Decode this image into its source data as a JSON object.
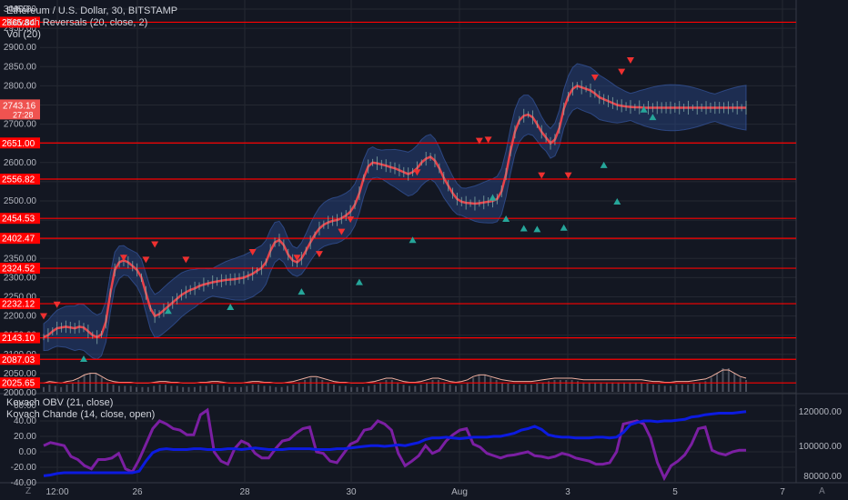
{
  "legend": {
    "symbol": "Ethereum / U.S. Dollar, 30, BITSTAMP",
    "study1": "Kovach Reversals (20, close, 2)",
    "study2": "Vol (20)",
    "osc1": "Kovach OBV (21, close)",
    "osc2": "Kovach Chande (14, close, open)"
  },
  "currency": "USD",
  "corner_buttons": {
    "left": "Z",
    "right": "A"
  },
  "colors": {
    "background": "#131722",
    "grid": "#242832",
    "price_line": "#ff0000",
    "current_label": "#ef5350",
    "mid_band": "#e8424a",
    "band_fill": "#2a4a8c",
    "obv": "#0c1be0",
    "chande": "#7b1fa2",
    "volume_line": "#f0b0a0",
    "marker_up": "#26a69a",
    "marker_down": "#ef3030"
  },
  "chart_data": [
    {
      "type": "line",
      "title": "Ethereum / U.S. Dollar, 30, BITSTAMP",
      "ylim": [
        2000,
        3000
      ],
      "y_ticks": [
        "3000.00",
        "2950.00",
        "2900.00",
        "2850.00",
        "2800.00",
        "2750.00",
        "2700.00",
        "2650.00",
        "2600.00",
        "2550.00",
        "2500.00",
        "2450.00",
        "2400.00",
        "2350.00",
        "2300.00",
        "2250.00",
        "2200.00",
        "2150.00",
        "2100.00",
        "2050.00",
        "2000.00"
      ],
      "x_ticks": [
        "12:00",
        "26",
        "28",
        "30",
        "Aug",
        "3",
        "5",
        "7"
      ],
      "horizontal_levels": [
        2965.84,
        2651.0,
        2556.82,
        2454.53,
        2402.47,
        2324.52,
        2232.12,
        2143.1,
        2087.03,
        2025.65
      ],
      "current_price": {
        "value": "2743.16",
        "countdown": "27:28"
      },
      "series": [
        {
          "name": "Kovach Reversals (20, close, 2)",
          "x": [
            0,
            1,
            2,
            3,
            4,
            5,
            6,
            7,
            8,
            9,
            10,
            11,
            12,
            13,
            14,
            15,
            16,
            17,
            18,
            19,
            20,
            21,
            22,
            23,
            24,
            25,
            26,
            27,
            28,
            29,
            30,
            31,
            32,
            33,
            34,
            35,
            36,
            37,
            38,
            39,
            40,
            41,
            42,
            43,
            44,
            45,
            46,
            47,
            48,
            49,
            50,
            51,
            52,
            53,
            54,
            55,
            56,
            57,
            58,
            59,
            60,
            61,
            62,
            63,
            64,
            65,
            66,
            67,
            68,
            69,
            70,
            71,
            72,
            73,
            74,
            75,
            76,
            77,
            78,
            79,
            80,
            81,
            82,
            83,
            84,
            85,
            86,
            87,
            88,
            89,
            90,
            91,
            92,
            93,
            94,
            95,
            96,
            97,
            98,
            99,
            100,
            101,
            102,
            103,
            104,
            105,
            106,
            107,
            108,
            109,
            110,
            111,
            112,
            113,
            114,
            115,
            116,
            117,
            118,
            119,
            120,
            121,
            122,
            123,
            124,
            125,
            126,
            127,
            128,
            129,
            130,
            131,
            132,
            133,
            134,
            135,
            136,
            137,
            138,
            139,
            140,
            141,
            142,
            143,
            144,
            145,
            146,
            147,
            148,
            149,
            150,
            151,
            152,
            153,
            154,
            155,
            156,
            157,
            158
          ],
          "values": [
            2145,
            2150,
            2160,
            2168,
            2170,
            2172,
            2170,
            2168,
            2172,
            2170,
            2160,
            2150,
            2145,
            2152,
            2185,
            2260,
            2320,
            2340,
            2345,
            2340,
            2330,
            2320,
            2300,
            2260,
            2220,
            2200,
            2205,
            2215,
            2225,
            2235,
            2245,
            2255,
            2262,
            2268,
            2272,
            2278,
            2282,
            2285,
            2288,
            2290,
            2292,
            2294,
            2295,
            2296,
            2298,
            2300,
            2305,
            2310,
            2318,
            2325,
            2340,
            2370,
            2392,
            2398,
            2385,
            2360,
            2345,
            2340,
            2350,
            2370,
            2392,
            2412,
            2428,
            2438,
            2444,
            2448,
            2450,
            2455,
            2462,
            2472,
            2490,
            2520,
            2560,
            2590,
            2600,
            2598,
            2595,
            2592,
            2588,
            2585,
            2580,
            2575,
            2570,
            2575,
            2585,
            2600,
            2610,
            2615,
            2605,
            2585,
            2560,
            2540,
            2520,
            2505,
            2498,
            2495,
            2494,
            2493,
            2494,
            2496,
            2498,
            2500,
            2505,
            2525,
            2570,
            2630,
            2680,
            2710,
            2722,
            2725,
            2718,
            2700,
            2680,
            2665,
            2650,
            2660,
            2690,
            2740,
            2772,
            2792,
            2800,
            2796,
            2792,
            2788,
            2780,
            2770,
            2765,
            2760,
            2755,
            2750,
            2748,
            2746,
            2745,
            2744,
            2744,
            2743,
            2743,
            2743,
            2743,
            2743,
            2743,
            2743,
            2743,
            2743,
            2743,
            2743,
            2743,
            2743,
            2743,
            2743,
            2743,
            2743,
            2743,
            2743,
            2743,
            2743,
            2743,
            2743,
            2743
          ]
        }
      ],
      "markers_down": [
        {
          "x": 0,
          "y": 2198
        },
        {
          "x": 3,
          "y": 2228
        },
        {
          "x": 18,
          "y": 2350
        },
        {
          "x": 23,
          "y": 2345
        },
        {
          "x": 25,
          "y": 2385
        },
        {
          "x": 32,
          "y": 2345
        },
        {
          "x": 47,
          "y": 2365
        },
        {
          "x": 57,
          "y": 2350
        },
        {
          "x": 62,
          "y": 2360
        },
        {
          "x": 67,
          "y": 2418
        },
        {
          "x": 69,
          "y": 2450
        },
        {
          "x": 84,
          "y": 2573
        },
        {
          "x": 98,
          "y": 2655
        },
        {
          "x": 100,
          "y": 2658
        },
        {
          "x": 112,
          "y": 2565
        },
        {
          "x": 118,
          "y": 2565
        },
        {
          "x": 124,
          "y": 2820
        },
        {
          "x": 130,
          "y": 2835
        },
        {
          "x": 132,
          "y": 2865
        }
      ],
      "markers_up": [
        {
          "x": 9,
          "y": 2090
        },
        {
          "x": 28,
          "y": 2215
        },
        {
          "x": 42,
          "y": 2225
        },
        {
          "x": 58,
          "y": 2265
        },
        {
          "x": 71,
          "y": 2290
        },
        {
          "x": 83,
          "y": 2400
        },
        {
          "x": 101,
          "y": 2510
        },
        {
          "x": 104,
          "y": 2455
        },
        {
          "x": 108,
          "y": 2430
        },
        {
          "x": 111,
          "y": 2428
        },
        {
          "x": 117,
          "y": 2432
        },
        {
          "x": 126,
          "y": 2595
        },
        {
          "x": 129,
          "y": 2500
        },
        {
          "x": 135,
          "y": 2740
        },
        {
          "x": 137,
          "y": 2720
        }
      ]
    },
    {
      "type": "line",
      "title": "Kovach OBV (21, close) / Kovach Chande (14, close, open)",
      "y_ticks_left": [
        "60.00",
        "40.00",
        "20.00",
        "0.00",
        "-20.00",
        "-40.00"
      ],
      "y_ticks_right": [
        "120000.00",
        "100000.00",
        "80000.00"
      ],
      "series": [
        {
          "name": "Kovach OBV (21, close)",
          "x": [
            0,
            8,
            16,
            24,
            32,
            40,
            48,
            56,
            64,
            72,
            80,
            88,
            96,
            104,
            112,
            120,
            128,
            136,
            144,
            152,
            160,
            168,
            176,
            184,
            192,
            200,
            208,
            216,
            224,
            232,
            240,
            248,
            256,
            264,
            272,
            280,
            288,
            296,
            304,
            312,
            320,
            328,
            336,
            344,
            352,
            360,
            368,
            376,
            384,
            392,
            400,
            408,
            416,
            424,
            432,
            440,
            448,
            456,
            464,
            472,
            480,
            488,
            496,
            504,
            512,
            520,
            528,
            536,
            544,
            552,
            560,
            568,
            576,
            584,
            592,
            600,
            608,
            616,
            624,
            632,
            640,
            648,
            656,
            664,
            672,
            680,
            688,
            696,
            704,
            712,
            720,
            728,
            736,
            744,
            752,
            760,
            768,
            776,
            784,
            792,
            800,
            808,
            816,
            824
          ],
          "values": [
            -31,
            -30,
            -28,
            -27,
            -27,
            -27,
            -27,
            -27,
            -27,
            -27,
            -27,
            -27,
            -27,
            -27,
            -25,
            -12,
            -1,
            3,
            4,
            3,
            3,
            3,
            4,
            4,
            3,
            3,
            3,
            4,
            4,
            3,
            4,
            5,
            4,
            3,
            3,
            3,
            4,
            4,
            4,
            4,
            3,
            3,
            3,
            4,
            4,
            5,
            6,
            7,
            8,
            8,
            7,
            8,
            9,
            8,
            10,
            12,
            16,
            18,
            18,
            19,
            18,
            17,
            18,
            19,
            19,
            19,
            20,
            20,
            22,
            24,
            28,
            30,
            33,
            29,
            22,
            20,
            19,
            19,
            18,
            18,
            18,
            19,
            19,
            18,
            19,
            25,
            35,
            38,
            40,
            40,
            39,
            40,
            40,
            41,
            42,
            45,
            46,
            48,
            49,
            50,
            50,
            50,
            51,
            52
          ]
        },
        {
          "name": "Kovach Chande (14, close, open)",
          "x": [
            0,
            8,
            16,
            24,
            32,
            40,
            48,
            56,
            64,
            72,
            80,
            88,
            96,
            104,
            112,
            120,
            128,
            136,
            144,
            152,
            160,
            168,
            176,
            184,
            192,
            200,
            208,
            216,
            224,
            232,
            240,
            248,
            256,
            264,
            272,
            280,
            288,
            296,
            304,
            312,
            320,
            328,
            336,
            344,
            352,
            360,
            368,
            376,
            384,
            392,
            400,
            408,
            416,
            424,
            432,
            440,
            448,
            456,
            464,
            472,
            480,
            488,
            496,
            504,
            512,
            520,
            528,
            536,
            544,
            552,
            560,
            568,
            576,
            584,
            592,
            600,
            608,
            616,
            624,
            632,
            640,
            648,
            656,
            664,
            672,
            680,
            688,
            696,
            704,
            712,
            720,
            728,
            736,
            744,
            752,
            760,
            768,
            776,
            784,
            792,
            800,
            808,
            816,
            824
          ],
          "values": [
            8,
            12,
            10,
            8,
            -6,
            -10,
            -18,
            -22,
            -10,
            -10,
            -8,
            -2,
            -22,
            -26,
            -10,
            10,
            30,
            40,
            36,
            30,
            28,
            22,
            22,
            48,
            54,
            0,
            -12,
            -16,
            4,
            14,
            10,
            -2,
            -8,
            -8,
            4,
            14,
            16,
            24,
            30,
            32,
            0,
            -2,
            -12,
            -14,
            -2,
            10,
            14,
            28,
            30,
            40,
            36,
            28,
            -2,
            -18,
            -12,
            -5,
            8,
            -2,
            2,
            14,
            22,
            28,
            30,
            10,
            6,
            -2,
            -5,
            -8,
            -5,
            -4,
            -2,
            0,
            -5,
            -6,
            -8,
            -6,
            -2,
            -4,
            -8,
            -10,
            -12,
            -16,
            -16,
            -14,
            0,
            36,
            38,
            40,
            36,
            18,
            -14,
            -34,
            -18,
            -12,
            -4,
            10,
            30,
            32,
            2,
            -2,
            -4,
            0,
            2,
            2
          ]
        }
      ]
    },
    {
      "type": "line",
      "title": "Vol (20)",
      "x_range": [
        0,
        824
      ],
      "values": [
        4,
        6,
        5,
        4,
        6,
        7,
        10,
        14,
        16,
        16,
        12,
        8,
        6,
        5,
        5,
        5,
        4,
        4,
        4,
        5,
        6,
        6,
        5,
        5,
        4,
        4,
        4,
        5,
        5,
        6,
        6,
        5,
        4,
        4,
        4,
        5,
        6,
        6,
        5,
        5,
        4,
        4,
        5,
        6,
        8,
        10,
        12,
        12,
        10,
        8,
        6,
        5,
        5,
        4,
        4,
        4,
        5,
        6,
        8,
        10,
        10,
        8,
        6,
        5,
        5,
        6,
        8,
        10,
        10,
        8,
        6,
        5,
        6,
        8,
        12,
        14,
        14,
        12,
        10,
        8,
        7,
        6,
        6,
        6,
        6,
        7,
        8,
        9,
        10,
        10,
        10,
        10,
        9,
        8,
        8,
        8,
        8,
        8,
        8,
        8,
        8,
        8,
        8,
        8,
        7,
        6,
        6,
        5,
        5,
        6,
        6,
        6,
        7,
        8,
        9,
        12,
        16,
        20,
        20,
        16,
        12,
        10
      ]
    }
  ]
}
